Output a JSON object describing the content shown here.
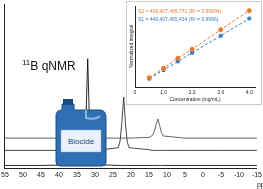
{
  "chart_data": [
    {
      "type": "line",
      "x_label": "ppm",
      "x": [
        55,
        45,
        35,
        33.5,
        33,
        32.5,
        32,
        31.5,
        31,
        30.5,
        28,
        23.5,
        23,
        22.5,
        22,
        21.5,
        21,
        20.5,
        15,
        14,
        13.5,
        13,
        12.5,
        12,
        11.5,
        11,
        5,
        -5,
        -15
      ],
      "series": [
        {
          "color": "#111111",
          "values": [
            0.2,
            0.2,
            0.25,
            0.4,
            0.9,
            3.5,
            8,
            3.2,
            0.8,
            0.4,
            0.25,
            0.2,
            0.2,
            0.2,
            0.2,
            0.2,
            0.2,
            0.2,
            0.2,
            0.2,
            0.2,
            0.2,
            0.2,
            0.2,
            0.2,
            0.2,
            0.2,
            0.2,
            0.2
          ]
        },
        {
          "color": "#333333",
          "values": [
            1.3,
            1.3,
            1.3,
            1.3,
            1.3,
            1.3,
            1.3,
            1.3,
            1.3,
            1.3,
            1.35,
            1.5,
            2.0,
            3.4,
            5.2,
            3.2,
            1.9,
            1.5,
            1.35,
            1.3,
            1.3,
            1.3,
            1.3,
            1.3,
            1.3,
            1.3,
            1.3,
            1.3,
            1.3
          ]
        },
        {
          "color": "#555555",
          "values": [
            2.2,
            2.2,
            2.2,
            2.2,
            2.2,
            2.2,
            2.2,
            2.2,
            2.2,
            2.2,
            2.2,
            2.2,
            2.2,
            2.2,
            2.2,
            2.2,
            2.2,
            2.2,
            2.25,
            2.4,
            2.7,
            3.2,
            3.6,
            3.1,
            2.6,
            2.35,
            2.2,
            2.2,
            2.2
          ]
        }
      ],
      "xlim": [
        55,
        -15
      ],
      "xticks": [
        55,
        50,
        45,
        40,
        35,
        30,
        25,
        20,
        15,
        10,
        5,
        0,
        -5,
        -10,
        -15
      ],
      "ylim": [
        0,
        12
      ],
      "tick_labels": "x",
      "grid": false
    },
    {
      "type": "scatter",
      "x_label": "Concentration (mg/mL)",
      "y_label": "Normalized integral",
      "x": [
        0.5,
        1.0,
        1.5,
        2.0,
        3.0,
        4.0
      ],
      "series": [
        {
          "name": "S2",
          "color": "#e8772e",
          "marker": "circle",
          "line_style": "dashed",
          "values": [
            230,
            465,
            710,
            935,
            1415,
            1885
          ]
        },
        {
          "name": "S1",
          "color": "#3b7dc4",
          "marker": "rect",
          "line_style": "dashed",
          "values": [
            205,
            420,
            630,
            845,
            1265,
            1690
          ]
        }
      ],
      "annotations": [
        "S2 = 406,407,465,771 (R² = 0.99994)",
        "S1 = 446,407,465,434 (R² = 0.9996)"
      ],
      "xlim": [
        0,
        4.2
      ],
      "xticks": [
        0,
        {
          "value": 1,
          "label": "1.0"
        },
        {
          "value": 2,
          "label": "2.0"
        },
        {
          "value": 3,
          "label": "3.0"
        },
        {
          "value": 4,
          "label": "4.0"
        }
      ],
      "ylim": [
        0,
        2000
      ],
      "tick_labels": "x",
      "grid": false
    }
  ],
  "label": {
    "superscript": "11",
    "text": "B qNMR"
  },
  "container_label": "Biocide"
}
